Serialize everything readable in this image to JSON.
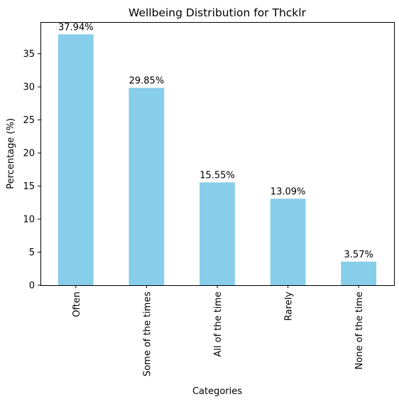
{
  "chart_data": {
    "type": "bar",
    "title": "Wellbeing Distribution for Thcklr",
    "xlabel": "Categories",
    "ylabel": "Percentage (%)",
    "categories": [
      "Often",
      "Some of the times",
      "All of the time",
      "Rarely",
      "None of the time"
    ],
    "values": [
      37.94,
      29.85,
      15.55,
      13.09,
      3.57
    ],
    "value_labels": [
      "37.94%",
      "29.85%",
      "15.55%",
      "13.09%",
      "3.57%"
    ],
    "ylim": [
      0,
      39.8
    ],
    "yticks": [
      0,
      5,
      10,
      15,
      20,
      25,
      30,
      35
    ],
    "ytick_labels": [
      "0",
      "5",
      "10",
      "15",
      "20",
      "25",
      "30",
      "35"
    ],
    "grid": false,
    "bar_color": "#87ceeb"
  }
}
